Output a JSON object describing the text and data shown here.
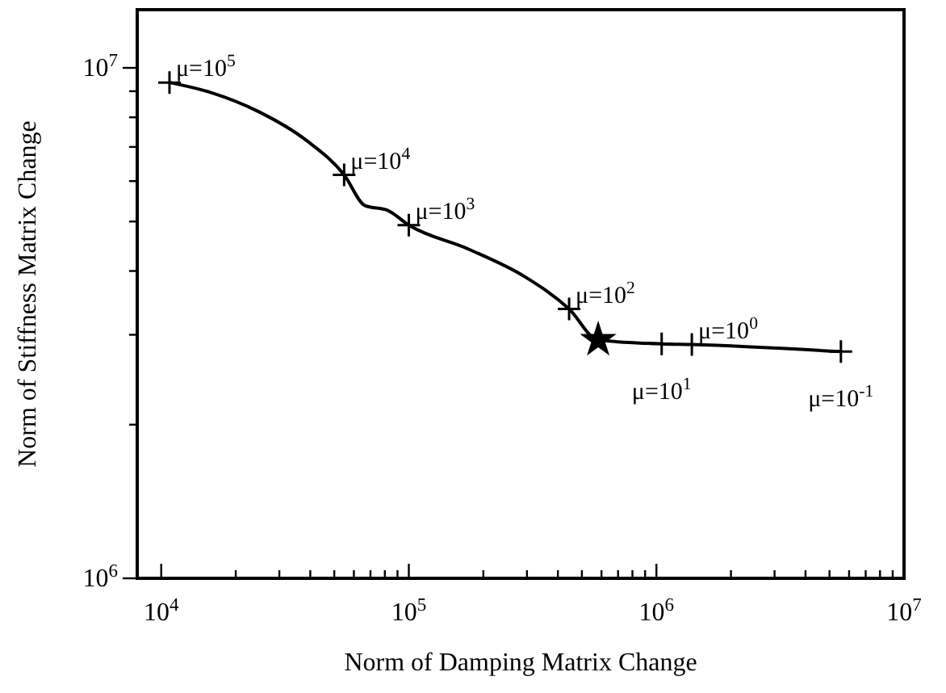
{
  "chart_data": {
    "type": "line",
    "xlabel": "Norm of Damping Matrix Change",
    "ylabel": "Norm of Stiffness Matrix Change",
    "log": "xy",
    "grid": false,
    "xlim": [
      8000,
      10000000
    ],
    "ylim": [
      1000000,
      13000000
    ],
    "xticks": [
      {
        "value": 10000,
        "label": "10$^{4}$"
      },
      {
        "value": 20000,
        "label": null
      },
      {
        "value": 30000,
        "label": null
      },
      {
        "value": 40000,
        "label": null
      },
      {
        "value": 50000,
        "label": null
      },
      {
        "value": 60000,
        "label": null
      },
      {
        "value": 70000,
        "label": null
      },
      {
        "value": 80000,
        "label": null
      },
      {
        "value": 90000,
        "label": null
      },
      {
        "value": 100000,
        "label": "10$^{5}$"
      },
      {
        "value": 200000,
        "label": null
      },
      {
        "value": 300000,
        "label": null
      },
      {
        "value": 400000,
        "label": null
      },
      {
        "value": 500000,
        "label": null
      },
      {
        "value": 600000,
        "label": null
      },
      {
        "value": 700000,
        "label": null
      },
      {
        "value": 800000,
        "label": null
      },
      {
        "value": 900000,
        "label": null
      },
      {
        "value": 1000000,
        "label": "10$^{6}$"
      },
      {
        "value": 2000000,
        "label": null
      },
      {
        "value": 3000000,
        "label": null
      },
      {
        "value": 4000000,
        "label": null
      },
      {
        "value": 5000000,
        "label": null
      },
      {
        "value": 6000000,
        "label": null
      },
      {
        "value": 7000000,
        "label": null
      },
      {
        "value": 8000000,
        "label": null
      },
      {
        "value": 9000000,
        "label": null
      },
      {
        "value": 10000000,
        "label": "10$^{7}$"
      }
    ],
    "yticks": [
      {
        "value": 1000000,
        "label": "10$^{6}$"
      },
      {
        "value": 2000000,
        "label": null
      },
      {
        "value": 3000000,
        "label": null
      },
      {
        "value": 4000000,
        "label": null
      },
      {
        "value": 5000000,
        "label": null
      },
      {
        "value": 6000000,
        "label": null
      },
      {
        "value": 7000000,
        "label": null
      },
      {
        "value": 8000000,
        "label": null
      },
      {
        "value": 9000000,
        "label": null
      },
      {
        "value": 10000000,
        "label": "10$^{7}$"
      }
    ],
    "series": [
      {
        "type": "line",
        "color": "#000000",
        "marker": "none",
        "line_style": "solid",
        "x": [
          10800,
          15700,
          24700,
          38700,
          54800,
          66600,
          82000,
          100000,
          175000,
          296000,
          444000,
          582000,
          1050000,
          1390000,
          5560000
        ],
        "values": [
          9360000,
          8960000,
          8210000,
          7200000,
          6170000,
          5370000,
          5260000,
          4920000,
          4410000,
          3890000,
          3370000,
          2930000,
          2880000,
          2870000,
          2780000
        ]
      },
      {
        "type": "scatter",
        "color": "#000000",
        "marker": "cross",
        "x": [
          10800,
          54800,
          100000,
          444000,
          1050000,
          1390000,
          5560000
        ],
        "values": [
          9360000,
          6170000,
          4920000,
          3370000,
          2880000,
          2870000,
          2780000
        ]
      },
      {
        "type": "scatter",
        "color": "#000000",
        "marker": "star",
        "x": [
          582000
        ],
        "values": [
          2930000
        ]
      }
    ],
    "annotations": [
      {
        "text": "μ=10$^{5}$",
        "x": 10800,
        "y": 9360000
      },
      {
        "text": "μ=10$^{4}$",
        "x": 54800,
        "y": 6170000
      },
      {
        "text": "μ=10$^{3}$",
        "x": 100000,
        "y": 4920000
      },
      {
        "text": "μ=10$^{2}$",
        "x": 444000,
        "y": 3370000
      },
      {
        "text": "μ=10$^{0}$",
        "x": 1390000,
        "y": 2870000
      },
      {
        "text": "μ=10$^{1}$",
        "x": 1050000,
        "y": 2880000
      },
      {
        "text": "μ=10$^{-1}$",
        "x": 5560000,
        "y": 2780000
      }
    ]
  }
}
